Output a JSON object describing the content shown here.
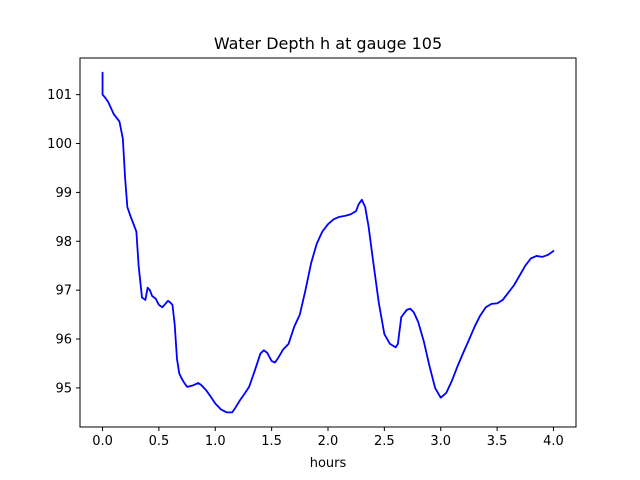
{
  "chart_data": {
    "type": "line",
    "title": "Water Depth h at gauge 105",
    "xlabel": "hours",
    "ylabel": "",
    "xlim": [
      -0.2,
      4.2
    ],
    "ylim": [
      94.2,
      101.75
    ],
    "x_ticks": [
      0.0,
      0.5,
      1.0,
      1.5,
      2.0,
      2.5,
      3.0,
      3.5,
      4.0
    ],
    "x_tick_labels": [
      "0.0",
      "0.5",
      "1.0",
      "1.5",
      "2.0",
      "2.5",
      "3.0",
      "3.5",
      "4.0"
    ],
    "y_ticks": [
      95,
      96,
      97,
      98,
      99,
      100,
      101
    ],
    "y_tick_labels": [
      "95",
      "96",
      "97",
      "98",
      "99",
      "100",
      "101"
    ],
    "grid": false,
    "legend": "none",
    "colors": {
      "line": "#0000ff",
      "axes": "#000000",
      "background": "#ffffff"
    },
    "series": [
      {
        "x": [
          0.0,
          0.0,
          0.0,
          0.02,
          0.05,
          0.1,
          0.15,
          0.18,
          0.2,
          0.22,
          0.25,
          0.3,
          0.32,
          0.35,
          0.38,
          0.4,
          0.42,
          0.44,
          0.47,
          0.5,
          0.53,
          0.55,
          0.58,
          0.6,
          0.62,
          0.64,
          0.66,
          0.68,
          0.7,
          0.72,
          0.75,
          0.8,
          0.85,
          0.88,
          0.92,
          0.96,
          1.0,
          1.05,
          1.1,
          1.15,
          1.18,
          1.22,
          1.26,
          1.3,
          1.35,
          1.4,
          1.43,
          1.46,
          1.5,
          1.53,
          1.56,
          1.6,
          1.65,
          1.7,
          1.75,
          1.8,
          1.85,
          1.9,
          1.95,
          2.0,
          2.05,
          2.1,
          2.15,
          2.2,
          2.25,
          2.27,
          2.3,
          2.33,
          2.36,
          2.4,
          2.45,
          2.5,
          2.55,
          2.6,
          2.62,
          2.65,
          2.7,
          2.73,
          2.76,
          2.8,
          2.85,
          2.9,
          2.95,
          3.0,
          3.05,
          3.1,
          3.15,
          3.2,
          3.25,
          3.3,
          3.35,
          3.4,
          3.45,
          3.5,
          3.55,
          3.6,
          3.65,
          3.7,
          3.75,
          3.8,
          3.85,
          3.9,
          3.95,
          4.0
        ],
        "y": [
          101.45,
          101.2,
          101.0,
          100.95,
          100.85,
          100.6,
          100.45,
          100.1,
          99.3,
          98.7,
          98.5,
          98.2,
          97.5,
          96.85,
          96.8,
          97.05,
          97.0,
          96.88,
          96.83,
          96.7,
          96.65,
          96.7,
          96.78,
          96.75,
          96.7,
          96.3,
          95.6,
          95.3,
          95.2,
          95.12,
          95.02,
          95.05,
          95.1,
          95.05,
          94.95,
          94.82,
          94.68,
          94.56,
          94.5,
          94.5,
          94.6,
          94.75,
          94.88,
          95.02,
          95.35,
          95.7,
          95.77,
          95.72,
          95.55,
          95.52,
          95.62,
          95.78,
          95.9,
          96.25,
          96.5,
          97.0,
          97.55,
          97.95,
          98.2,
          98.35,
          98.45,
          98.5,
          98.52,
          98.55,
          98.62,
          98.75,
          98.85,
          98.7,
          98.3,
          97.6,
          96.75,
          96.1,
          95.9,
          95.83,
          95.9,
          96.45,
          96.6,
          96.62,
          96.55,
          96.35,
          95.95,
          95.45,
          95.0,
          94.8,
          94.9,
          95.15,
          95.45,
          95.72,
          95.98,
          96.25,
          96.48,
          96.65,
          96.72,
          96.73,
          96.8,
          96.95,
          97.1,
          97.3,
          97.5,
          97.65,
          97.7,
          97.68,
          97.72,
          97.8
        ]
      }
    ]
  }
}
